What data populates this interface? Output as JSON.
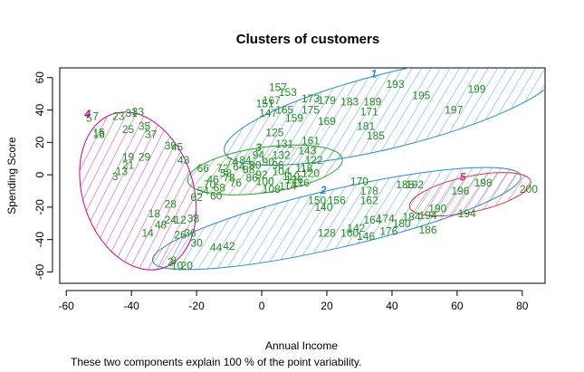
{
  "chart_data": {
    "type": "scatter",
    "title": "Clusters of customers",
    "xlabel": "Annual Income",
    "ylabel": "Spending Score",
    "subtitle": "These two components explain 100 % of the point variability.",
    "xlim": [
      -62,
      87
    ],
    "ylim": [
      -67,
      66
    ],
    "xticks": [
      -60,
      -40,
      -20,
      0,
      20,
      40,
      60,
      80
    ],
    "yticks": [
      -60,
      -40,
      -20,
      0,
      20,
      40,
      60
    ],
    "point_label_color": "#228B22",
    "clusters": [
      {
        "label": "1",
        "color": "#2A8ACB",
        "center": [
          40,
          40
        ],
        "rx": 53,
        "ry": 23,
        "angle": 14
      },
      {
        "label": "2",
        "color": "#2A8ACB",
        "center": [
          23,
          -27
        ],
        "rx": 58,
        "ry": 18,
        "angle": 13
      },
      {
        "label": "3",
        "color": "#2E9B2E",
        "center": [
          1,
          3
        ],
        "rx": 24,
        "ry": 14,
        "angle": 8
      },
      {
        "label": "4",
        "color": "#C000A0",
        "center": [
          -38,
          -10
        ],
        "rx": 17,
        "ry": 50,
        "angle": 18
      },
      {
        "label": "5",
        "color": "#D03A50",
        "center": [
          64,
          -12
        ],
        "rx": 19,
        "ry": 11,
        "angle": 12
      }
    ],
    "points": [
      {
        "t": "193",
        "x": 41,
        "y": 56
      },
      {
        "t": "199",
        "x": 66,
        "y": 53
      },
      {
        "t": "195",
        "x": 49,
        "y": 49
      },
      {
        "t": "197",
        "x": 59,
        "y": 40
      },
      {
        "t": "157",
        "x": 5,
        "y": 54
      },
      {
        "t": "153",
        "x": 8,
        "y": 51
      },
      {
        "t": "167",
        "x": 3,
        "y": 46
      },
      {
        "t": "173",
        "x": 15,
        "y": 47
      },
      {
        "t": "179",
        "x": 20,
        "y": 46
      },
      {
        "t": "183",
        "x": 27,
        "y": 45
      },
      {
        "t": "189",
        "x": 34,
        "y": 45
      },
      {
        "t": "171",
        "x": 33,
        "y": 39
      },
      {
        "t": "175",
        "x": 15,
        "y": 40
      },
      {
        "t": "169",
        "x": 20,
        "y": 33
      },
      {
        "t": "159",
        "x": 10,
        "y": 35
      },
      {
        "t": "165",
        "x": 7,
        "y": 40
      },
      {
        "t": "151",
        "x": 1,
        "y": 44
      },
      {
        "t": "147",
        "x": 2,
        "y": 38
      },
      {
        "t": "181",
        "x": 32,
        "y": 30
      },
      {
        "t": "185",
        "x": 35,
        "y": 24
      },
      {
        "t": "125",
        "x": 4,
        "y": 26
      },
      {
        "t": "161",
        "x": 15,
        "y": 21
      },
      {
        "t": "143",
        "x": 14,
        "y": 15
      },
      {
        "t": "131",
        "x": 7,
        "y": 19
      },
      {
        "t": "170",
        "x": 30,
        "y": -4
      },
      {
        "t": "178",
        "x": 33,
        "y": -10
      },
      {
        "t": "188",
        "x": 44,
        "y": -6
      },
      {
        "t": "192",
        "x": 47,
        "y": -6
      },
      {
        "t": "162",
        "x": 33,
        "y": -16
      },
      {
        "t": "150",
        "x": 17,
        "y": -16
      },
      {
        "t": "156",
        "x": 23,
        "y": -16
      },
      {
        "t": "140",
        "x": 19,
        "y": -20
      },
      {
        "t": "174",
        "x": 38,
        "y": -27
      },
      {
        "t": "180",
        "x": 43,
        "y": -30
      },
      {
        "t": "190",
        "x": 54,
        "y": -21
      },
      {
        "t": "194",
        "x": 51,
        "y": -25
      },
      {
        "t": "184",
        "x": 46,
        "y": -26
      },
      {
        "t": "186",
        "x": 51,
        "y": -34
      },
      {
        "t": "128",
        "x": 20,
        "y": -36
      },
      {
        "t": "142",
        "x": 29,
        "y": -33
      },
      {
        "t": "146",
        "x": 32,
        "y": -38
      },
      {
        "t": "160",
        "x": 27,
        "y": -36
      },
      {
        "t": "176",
        "x": 39,
        "y": -35
      },
      {
        "t": "164",
        "x": 34,
        "y": -28
      },
      {
        "t": "198",
        "x": 68,
        "y": -5
      },
      {
        "t": "196",
        "x": 61,
        "y": -10
      },
      {
        "t": "200",
        "x": 82,
        "y": -9
      },
      {
        "t": "194",
        "x": 63,
        "y": -24
      },
      {
        "t": "5",
        "x": -53,
        "y": 35
      },
      {
        "t": "7",
        "x": -51,
        "y": 36
      },
      {
        "t": "23",
        "x": -44,
        "y": 36
      },
      {
        "t": "31",
        "x": -40,
        "y": 38
      },
      {
        "t": "33",
        "x": -38,
        "y": 39
      },
      {
        "t": "15",
        "x": -50,
        "y": 26
      },
      {
        "t": "16",
        "x": -50,
        "y": 25
      },
      {
        "t": "25",
        "x": -41,
        "y": 28
      },
      {
        "t": "35",
        "x": -36,
        "y": 30
      },
      {
        "t": "37",
        "x": -34,
        "y": 25
      },
      {
        "t": "39",
        "x": -28,
        "y": 18
      },
      {
        "t": "45",
        "x": -26,
        "y": 17
      },
      {
        "t": "19",
        "x": -41,
        "y": 11
      },
      {
        "t": "29",
        "x": -36,
        "y": 11
      },
      {
        "t": "21",
        "x": -41,
        "y": 6
      },
      {
        "t": "43",
        "x": -24,
        "y": 9
      },
      {
        "t": "13",
        "x": -43,
        "y": 2
      },
      {
        "t": "3",
        "x": -45,
        "y": -1
      },
      {
        "t": "28",
        "x": -28,
        "y": -18
      },
      {
        "t": "18",
        "x": -33,
        "y": -24
      },
      {
        "t": "24",
        "x": -28,
        "y": -28
      },
      {
        "t": "12",
        "x": -25,
        "y": -28
      },
      {
        "t": "38",
        "x": -21,
        "y": -27
      },
      {
        "t": "48",
        "x": -31,
        "y": -31
      },
      {
        "t": "14",
        "x": -35,
        "y": -36
      },
      {
        "t": "26",
        "x": -25,
        "y": -37
      },
      {
        "t": "36",
        "x": -22,
        "y": -36
      },
      {
        "t": "30",
        "x": -20,
        "y": -42
      },
      {
        "t": "44",
        "x": -14,
        "y": -45
      },
      {
        "t": "42",
        "x": -10,
        "y": -44
      },
      {
        "t": "8",
        "x": -27,
        "y": -53
      },
      {
        "t": "20",
        "x": -23,
        "y": -56
      },
      {
        "t": "10",
        "x": -26,
        "y": -56
      },
      {
        "t": "2",
        "x": -28,
        "y": -54
      },
      {
        "t": "66",
        "x": -18,
        "y": 4
      },
      {
        "t": "72",
        "x": -12,
        "y": 4
      },
      {
        "t": "46",
        "x": -15,
        "y": -3
      },
      {
        "t": "58",
        "x": -11,
        "y": 1
      },
      {
        "t": "64",
        "x": -7,
        "y": 5
      },
      {
        "t": "80",
        "x": -2,
        "y": 6
      },
      {
        "t": "90",
        "x": 2,
        "y": 8
      },
      {
        "t": "96",
        "x": 5,
        "y": 6
      },
      {
        "t": "104",
        "x": 6,
        "y": 2
      },
      {
        "t": "110",
        "x": 9,
        "y": -1
      },
      {
        "t": "118",
        "x": 13,
        "y": 4
      },
      {
        "t": "122",
        "x": 16,
        "y": 9
      },
      {
        "t": "86",
        "x": -3,
        "y": -2
      },
      {
        "t": "76",
        "x": -8,
        "y": -5
      },
      {
        "t": "68",
        "x": -13,
        "y": -8
      },
      {
        "t": "54",
        "x": -18,
        "y": -10
      },
      {
        "t": "60",
        "x": -14,
        "y": -13
      },
      {
        "t": "62",
        "x": -20,
        "y": -14
      },
      {
        "t": "100",
        "x": 1,
        "y": -4
      },
      {
        "t": "114",
        "x": 8,
        "y": -7
      },
      {
        "t": "126",
        "x": 10,
        "y": -3
      },
      {
        "t": "132",
        "x": 6,
        "y": 12
      },
      {
        "t": "94",
        "x": -1,
        "y": 12
      },
      {
        "t": "84",
        "x": -5,
        "y": 9
      },
      {
        "t": "78",
        "x": -10,
        "y": -2
      },
      {
        "t": "70",
        "x": -16,
        "y": -6
      },
      {
        "t": "92",
        "x": 0,
        "y": 0
      },
      {
        "t": "108",
        "x": 3,
        "y": -9
      },
      {
        "t": "116",
        "x": 12,
        "y": -5
      },
      {
        "t": "120",
        "x": 15,
        "y": 1
      },
      {
        "t": "88",
        "x": -4,
        "y": 3
      },
      {
        "t": "74",
        "x": -9,
        "y": 8
      }
    ]
  }
}
